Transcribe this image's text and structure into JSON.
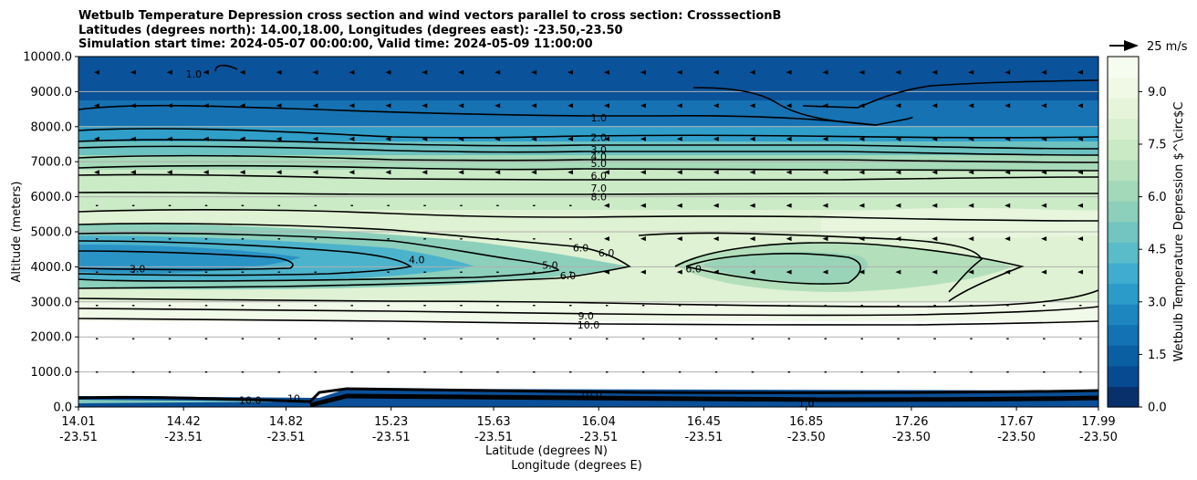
{
  "chart_data": {
    "type": "contour",
    "title_lines": [
      "Wetbulb Temperature Depression cross section and wind vectors parallel to cross section: CrosssectionB",
      "Latitudes (degrees north): 14.00,18.00, Longitudes (degrees east): -23.50,-23.50",
      "Simulation start time: 2024-05-07 00:00:00, Valid time: 2024-05-09 11:00:00"
    ],
    "ylabel": "Altitude (meters)",
    "xlabel_lat": "Latitude (degrees N)",
    "xlabel_lon": "Longitude (degrees E)",
    "ylim": [
      0,
      10000
    ],
    "yticks": [
      "0.0",
      "1000.0",
      "2000.0",
      "3000.0",
      "4000.0",
      "5000.0",
      "6000.0",
      "7000.0",
      "8000.0",
      "9000.0",
      "10000.0"
    ],
    "xtick_lat": [
      "14.01",
      "14.42",
      "14.82",
      "15.23",
      "15.63",
      "16.04",
      "16.45",
      "16.85",
      "17.26",
      "17.67",
      "17.99"
    ],
    "xtick_lon": [
      "-23.51",
      "-23.51",
      "-23.51",
      "-23.51",
      "-23.51",
      "-23.51",
      "-23.51",
      "-23.50",
      "-23.50",
      "-23.50",
      "-23.50"
    ],
    "colorbar": {
      "label": "Wetbulb Temperature Depression $^\\circ$C",
      "ticks": [
        "0.0",
        "1.5",
        "3.0",
        "4.5",
        "6.0",
        "7.5",
        "9.0"
      ],
      "range": [
        0,
        10
      ],
      "colors": [
        "#08306b",
        "#084a91",
        "#0a5fa3",
        "#1272b3",
        "#1d86bf",
        "#2b9bc9",
        "#40acd0",
        "#5abcc9",
        "#72c5c0",
        "#8ccfbb",
        "#a2d9b8",
        "#b7e2bd",
        "#c9eac4",
        "#d8f0cf",
        "#e6f5d9",
        "#f0f9e6",
        "#f7fcf0"
      ]
    },
    "wind_key": "25 m/s",
    "contour_labels": [
      {
        "text": "1.0",
        "lat": 14.46,
        "alt": 9500
      },
      {
        "text": "1.0",
        "lat": 16.04,
        "alt": 8250
      },
      {
        "text": "2.0",
        "lat": 16.04,
        "alt": 7700
      },
      {
        "text": "3.0",
        "lat": 16.04,
        "alt": 7350
      },
      {
        "text": "4.0",
        "lat": 16.04,
        "alt": 7150
      },
      {
        "text": "5.0",
        "lat": 16.04,
        "alt": 6950
      },
      {
        "text": "6.0",
        "lat": 16.04,
        "alt": 6600
      },
      {
        "text": "7.0",
        "lat": 16.04,
        "alt": 6250
      },
      {
        "text": "8.0",
        "lat": 16.04,
        "alt": 6000
      },
      {
        "text": "3.0",
        "lat": 14.24,
        "alt": 3950
      },
      {
        "text": "4.0",
        "lat": 15.33,
        "alt": 4200
      },
      {
        "text": "6.0",
        "lat": 15.97,
        "alt": 4550
      },
      {
        "text": "6.0",
        "lat": 16.07,
        "alt": 4400
      },
      {
        "text": "5.0",
        "lat": 15.85,
        "alt": 4050
      },
      {
        "text": "6.0",
        "lat": 15.92,
        "alt": 3750
      },
      {
        "text": "6.0",
        "lat": 16.41,
        "alt": 3950
      },
      {
        "text": "9.0",
        "lat": 15.99,
        "alt": 2600
      },
      {
        "text": "10.0",
        "lat": 16.0,
        "alt": 2350
      },
      {
        "text": "10.0",
        "lat": 16.01,
        "alt": 350
      },
      {
        "text": "10.0",
        "lat": 14.68,
        "alt": 200
      },
      {
        "text": "10",
        "lat": 14.85,
        "alt": 250
      },
      {
        "text": "1.0",
        "lat": 16.85,
        "alt": 100
      }
    ]
  }
}
